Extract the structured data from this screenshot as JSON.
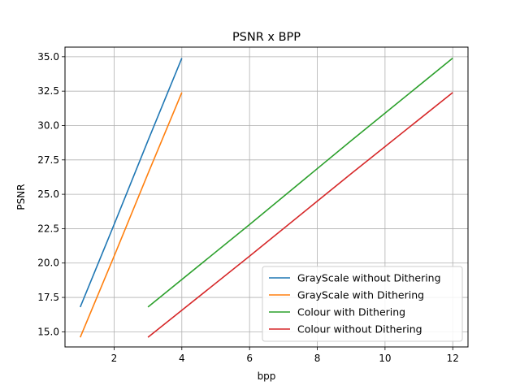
{
  "chart_data": {
    "type": "line",
    "title": "PSNR x BPP",
    "xlabel": "bpp",
    "ylabel": "PSNR",
    "xlim": [
      0.55,
      12.45
    ],
    "ylim": [
      13.9,
      35.7
    ],
    "xticks": [
      2,
      4,
      6,
      8,
      10,
      12
    ],
    "yticks": [
      15.0,
      17.5,
      20.0,
      22.5,
      25.0,
      27.5,
      30.0,
      32.5,
      35.0
    ],
    "grid": true,
    "legend_position": "lower-right",
    "series": [
      {
        "name": "GrayScale without Dithering",
        "color": "#1f77b4",
        "x": [
          1,
          2,
          3,
          4
        ],
        "y": [
          16.8,
          22.8,
          28.9,
          34.9
        ]
      },
      {
        "name": "GrayScale with Dithering",
        "color": "#ff7f0e",
        "x": [
          1,
          2,
          3,
          4
        ],
        "y": [
          14.6,
          20.5,
          26.5,
          32.4
        ]
      },
      {
        "name": "Colour with Dithering",
        "color": "#2ca02c",
        "x": [
          3,
          6,
          9,
          12
        ],
        "y": [
          16.8,
          22.8,
          28.9,
          34.9
        ]
      },
      {
        "name": "Colour without Dithering",
        "color": "#d62728",
        "x": [
          3,
          6,
          9,
          12
        ],
        "y": [
          14.6,
          20.5,
          26.5,
          32.4
        ]
      }
    ]
  }
}
